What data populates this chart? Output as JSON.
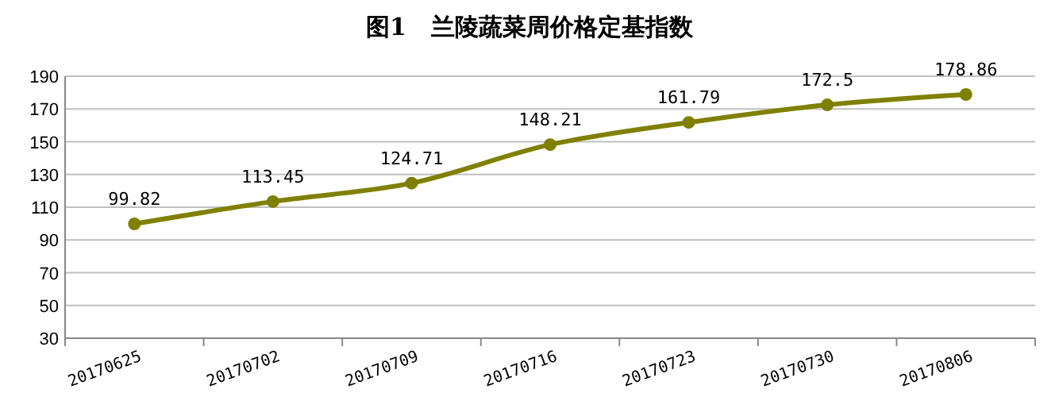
{
  "chart_data": {
    "type": "line",
    "title": "图1   兰陵蔬菜周价格定基指数",
    "categories": [
      "20170625",
      "20170702",
      "20170709",
      "20170716",
      "20170723",
      "20170730",
      "20170806"
    ],
    "series": [
      {
        "color": "#808000",
        "values": [
          99.82,
          113.45,
          124.71,
          148.21,
          161.79,
          172.5,
          178.86
        ]
      }
    ],
    "ylim": [
      30,
      190
    ],
    "yticks": [
      30,
      50,
      70,
      90,
      110,
      130,
      150,
      170,
      190
    ],
    "grid": "y",
    "marker": "circle",
    "data_labels": true
  }
}
